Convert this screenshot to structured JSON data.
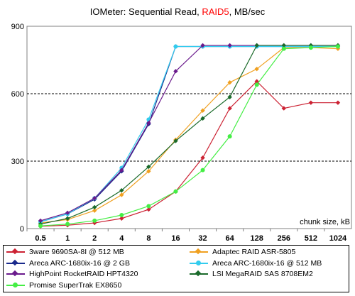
{
  "chart_data": {
    "type": "line",
    "title_parts": {
      "before": "IOMeter: Sequential Read, ",
      "highlight": "RAID5",
      "after": ", MB/sec"
    },
    "xlabel": "chunk size, kB",
    "ylabel": "",
    "categories": [
      "0.5",
      "1",
      "2",
      "4",
      "8",
      "16",
      "32",
      "64",
      "128",
      "256",
      "512",
      "1024"
    ],
    "y_ticks": [
      "0",
      "300",
      "600",
      "900"
    ],
    "ylim": [
      0,
      900
    ],
    "grid": "horizontal dashed at 300 and 600",
    "legend_placement": "bottom",
    "highlight_color": "#ff0000",
    "series": [
      {
        "name": "3ware 9690SA-8I @ 512 MB",
        "color": "#cc2233",
        "marker": "diamond",
        "values": [
          10,
          15,
          25,
          45,
          85,
          165,
          315,
          535,
          655,
          535,
          560,
          560
        ]
      },
      {
        "name": "Adaptec RAID ASR-5805",
        "color": "#f0a020",
        "marker": "diamond",
        "values": [
          25,
          40,
          80,
          150,
          255,
          395,
          525,
          650,
          710,
          805,
          805,
          800
        ]
      },
      {
        "name": "Areca ARC-1680ix-16 @ 2 GB",
        "color": "#1a2a8c",
        "marker": "diamond",
        "values": [
          30,
          65,
          130,
          255,
          465,
          810,
          810,
          810,
          810,
          810,
          810,
          810
        ]
      },
      {
        "name": "Areca ARC-1680ix-16 @ 512 MB",
        "color": "#33ccee",
        "marker": "circle",
        "values": [
          30,
          65,
          135,
          270,
          485,
          810,
          810,
          810,
          810,
          810,
          810,
          810
        ]
      },
      {
        "name": "HighPoint RocketRAID HPT4320",
        "color": "#6a1a8c",
        "marker": "diamond",
        "values": [
          35,
          70,
          135,
          260,
          470,
          700,
          815,
          815,
          815,
          815,
          815,
          815
        ]
      },
      {
        "name": "LSI MegaRAID SAS 8708EM2",
        "color": "#1a6a2a",
        "marker": "diamond",
        "values": [
          20,
          45,
          95,
          170,
          275,
          390,
          490,
          585,
          815,
          815,
          815,
          815
        ]
      },
      {
        "name": "Promise SuperTrak EX8650",
        "color": "#44ee44",
        "marker": "circle",
        "values": [
          12,
          20,
          35,
          60,
          100,
          165,
          260,
          410,
          640,
          800,
          805,
          810
        ]
      }
    ]
  }
}
